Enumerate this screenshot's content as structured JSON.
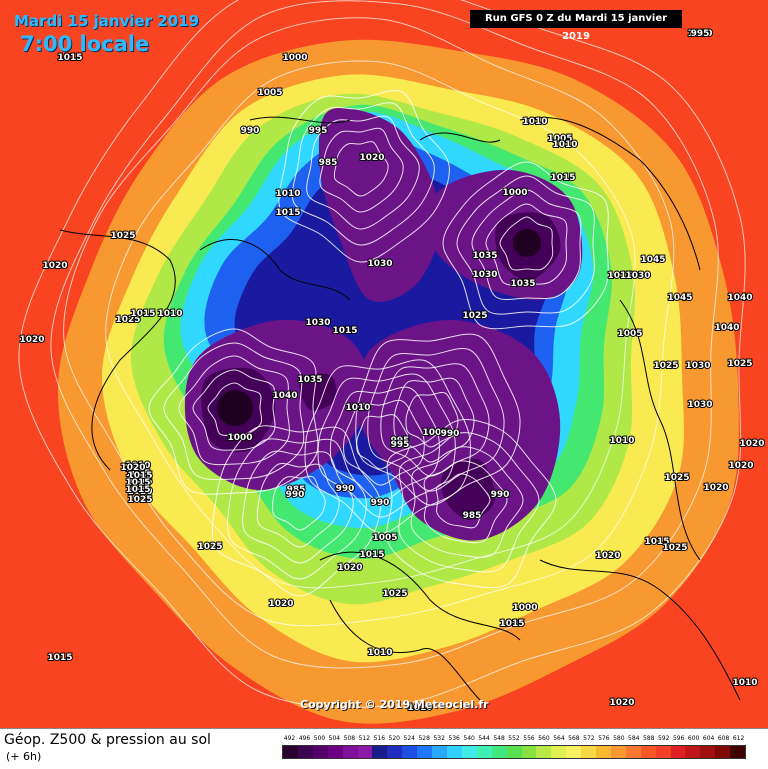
{
  "header": {
    "date": "Mardi 15 janvier 2019",
    "time": "7:00 locale",
    "run": "Run GFS 0 Z du Mardi 15 janvier 2019"
  },
  "footer": {
    "parameter": "Géop. Z500 & pression au sol",
    "step": "(+ 6h)",
    "copyright": "Copyright © 2019 Meteociel.fr"
  },
  "legend": {
    "values": [
      "492",
      "496",
      "500",
      "504",
      "508",
      "512",
      "516",
      "520",
      "524",
      "528",
      "532",
      "536",
      "540",
      "544",
      "548",
      "552",
      "556",
      "560",
      "564",
      "568",
      "572",
      "576",
      "580",
      "584",
      "588",
      "592",
      "596",
      "600",
      "604",
      "608",
      "612"
    ],
    "colors": [
      "#2a0030",
      "#3e0050",
      "#55006a",
      "#6b0082",
      "#80109a",
      "#8c18a8",
      "#1a1a8c",
      "#1e2ec0",
      "#1e4ee6",
      "#1e78ff",
      "#28a8ff",
      "#30d0ff",
      "#40ece8",
      "#40f0b0",
      "#40e880",
      "#58e050",
      "#88e040",
      "#b8e848",
      "#e0f050",
      "#f8f060",
      "#f8d840",
      "#f8b830",
      "#f89830",
      "#f87830",
      "#f85828",
      "#f04028",
      "#e02020",
      "#c01818",
      "#a01010",
      "#800808",
      "#400000"
    ]
  },
  "isobars": [
    "1015",
    "1010",
    "1000",
    "1005",
    "990",
    "995",
    "985",
    "1020",
    "1010",
    "1005",
    "1010",
    "1015",
    "1000",
    "1010",
    "1015",
    "1035",
    "1030",
    "1035",
    "1045",
    "1025",
    "1030",
    "1025",
    "1020",
    "1025",
    "1020",
    "1015",
    "1010",
    "1015",
    "1030",
    "1045",
    "1040",
    "1030",
    "1015",
    "1035",
    "1040",
    "1005",
    "1010",
    "1040",
    "1025",
    "1000",
    "1025",
    "1030",
    "1010",
    "995",
    "1000",
    "995",
    "990",
    "990",
    "990",
    "1030",
    "1020",
    "985",
    "990",
    "985",
    "990",
    "1020",
    "1025",
    "1005",
    "1015",
    "1020",
    "1015",
    "1025",
    "1020",
    "1025",
    "1025",
    "1000",
    "1020",
    "995",
    "1020",
    "1010",
    "1015",
    "1015",
    "1010",
    "1010",
    "1015",
    "1010",
    "1020",
    "1020",
    "1025",
    "1020",
    "1015",
    "1015",
    "1015",
    "1015",
    "1015",
    "995"
  ],
  "zones": {
    "outer": "#f84420",
    "orange": "#f89830",
    "yellow": "#f8ea50",
    "lime": "#b0e848",
    "green": "#44e870",
    "cyan": "#30d8ff",
    "blue": "#1e60f0",
    "navy": "#1a1aa0",
    "purple": "#6a1488",
    "darkpurple": "#440058",
    "core": "#200020",
    "isoline": "#ffffff",
    "coast": "#000000"
  }
}
